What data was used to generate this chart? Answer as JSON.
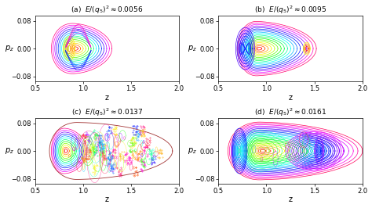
{
  "titles": [
    "(a)  $E/(q_5)^2\\approx 0.0056$",
    "(b)  $E/(q_5)^2\\approx 0.0095$",
    "(c)  $E/(q_5)^2\\approx 0.0137$",
    "(d)  $E/(q_5)^2\\approx 0.0161$"
  ],
  "xlabel": "z",
  "ylabel": "$p_z$",
  "xlim": [
    0.5,
    2.0
  ],
  "ylim": [
    -0.095,
    0.095
  ],
  "xticks": [
    0.5,
    1.0,
    1.5,
    2.0
  ],
  "yticks": [
    -0.08,
    0,
    0.08
  ],
  "figsize": [
    4.74,
    2.66
  ],
  "dpi": 100,
  "background_color": "#ffffff"
}
